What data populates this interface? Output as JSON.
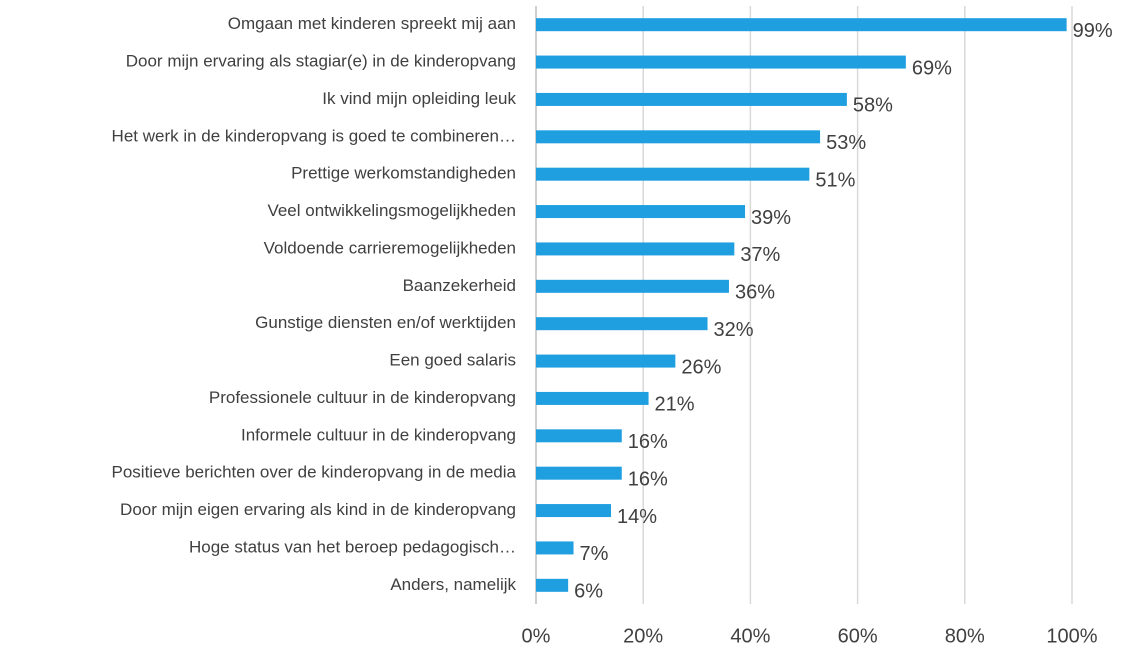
{
  "chart_data": {
    "type": "bar",
    "orientation": "horizontal",
    "categories": [
      "Omgaan met kinderen spreekt mij aan",
      "Door mijn ervaring als stagiar(e) in de kinderopvang",
      "Ik vind mijn opleiding leuk",
      "Het werk in de kinderopvang is goed te combineren…",
      "Prettige werkomstandigheden",
      "Veel ontwikkelingsmogelijkheden",
      "Voldoende carrieremogelijkheden",
      "Baanzekerheid",
      "Gunstige diensten en/of werktijden",
      "Een goed salaris",
      "Professionele cultuur in de kinderopvang",
      "Informele cultuur in de kinderopvang",
      "Positieve berichten over de kinderopvang in de media",
      "Door mijn eigen ervaring als kind in de kinderopvang",
      "Hoge status van het beroep pedagogisch…",
      "Anders, namelijk"
    ],
    "values": [
      99,
      69,
      58,
      53,
      51,
      39,
      37,
      36,
      32,
      26,
      21,
      16,
      16,
      14,
      7,
      6
    ],
    "value_labels": [
      "99%",
      "69%",
      "58%",
      "53%",
      "51%",
      "39%",
      "37%",
      "36%",
      "32%",
      "26%",
      "21%",
      "16%",
      "16%",
      "14%",
      "7%",
      "6%"
    ],
    "color": "#1f9fe0",
    "xlim": [
      0,
      100
    ],
    "xticks": [
      {
        "value": 0,
        "label": "0%"
      },
      {
        "value": 20,
        "label": "20%"
      },
      {
        "value": 40,
        "label": "40%"
      },
      {
        "value": 60,
        "label": "60%"
      },
      {
        "value": 80,
        "label": "80%"
      },
      {
        "value": 100,
        "label": "100%"
      }
    ],
    "grid": true
  }
}
